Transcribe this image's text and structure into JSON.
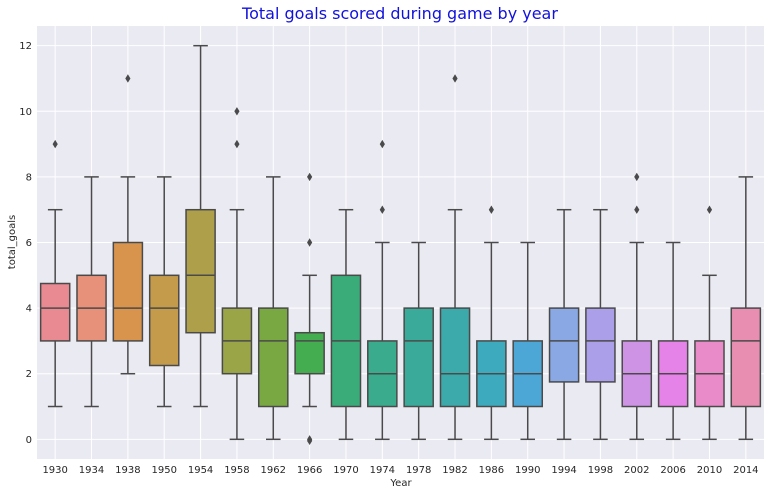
{
  "chart_data": {
    "type": "box",
    "title": "Total goals scored during game by year",
    "xlabel": "Year",
    "ylabel": "total_goals",
    "ylim": [
      -0.6,
      12.6
    ],
    "yticks": [
      0,
      2,
      4,
      6,
      8,
      10,
      12
    ],
    "grid": true,
    "categories": [
      "1930",
      "1934",
      "1938",
      "1950",
      "1954",
      "1958",
      "1962",
      "1966",
      "1970",
      "1974",
      "1978",
      "1982",
      "1986",
      "1990",
      "1994",
      "1998",
      "2002",
      "2006",
      "2010",
      "2014"
    ],
    "boxes": [
      {
        "year": "1930",
        "color": "#e98992",
        "min": 1,
        "q1": 3,
        "median": 4,
        "q3": 4.75,
        "max": 7,
        "outliers": [
          9
        ]
      },
      {
        "year": "1934",
        "color": "#e8917a",
        "min": 1,
        "q1": 3,
        "median": 4,
        "q3": 5,
        "max": 8,
        "outliers": []
      },
      {
        "year": "1938",
        "color": "#d8944c",
        "min": 2,
        "q1": 3,
        "median": 4,
        "q3": 6,
        "max": 8,
        "outliers": [
          11
        ]
      },
      {
        "year": "1950",
        "color": "#c49a4b",
        "min": 1,
        "q1": 2.25,
        "median": 4,
        "q3": 5,
        "max": 8,
        "outliers": []
      },
      {
        "year": "1954",
        "color": "#aea04a",
        "min": 1,
        "q1": 3.25,
        "median": 5,
        "q3": 7,
        "max": 12,
        "outliers": []
      },
      {
        "year": "1958",
        "color": "#99a547",
        "min": 0,
        "q1": 2,
        "median": 3,
        "q3": 4,
        "max": 7,
        "outliers": [
          9,
          10
        ]
      },
      {
        "year": "1962",
        "color": "#79a843",
        "min": 0,
        "q1": 1,
        "median": 3,
        "q3": 4,
        "max": 8,
        "outliers": []
      },
      {
        "year": "1966",
        "color": "#44ad50",
        "min": 1,
        "q1": 2,
        "median": 3,
        "q3": 3.25,
        "max": 5,
        "outliers": [
          0,
          0,
          6,
          8
        ]
      },
      {
        "year": "1970",
        "color": "#3aac79",
        "min": 0,
        "q1": 1,
        "median": 3,
        "q3": 5,
        "max": 7,
        "outliers": []
      },
      {
        "year": "1974",
        "color": "#3aab8c",
        "min": 0,
        "q1": 1,
        "median": 2,
        "q3": 3,
        "max": 6,
        "outliers": [
          7,
          9
        ]
      },
      {
        "year": "1978",
        "color": "#3aaa9b",
        "min": 0,
        "q1": 1,
        "median": 3,
        "q3": 4,
        "max": 6,
        "outliers": []
      },
      {
        "year": "1982",
        "color": "#3ca9aa",
        "min": 0,
        "q1": 1,
        "median": 2,
        "q3": 4,
        "max": 7,
        "outliers": [
          11
        ]
      },
      {
        "year": "1986",
        "color": "#3eaabd",
        "min": 0,
        "q1": 1,
        "median": 2,
        "q3": 3,
        "max": 6,
        "outliers": [
          7
        ]
      },
      {
        "year": "1990",
        "color": "#4da7d6",
        "min": 0,
        "q1": 1,
        "median": 2,
        "q3": 3,
        "max": 6,
        "outliers": []
      },
      {
        "year": "1994",
        "color": "#89a8e4",
        "min": 0,
        "q1": 1.75,
        "median": 3,
        "q3": 4,
        "max": 7,
        "outliers": []
      },
      {
        "year": "1998",
        "color": "#aa9fe8",
        "min": 0,
        "q1": 1.75,
        "median": 3,
        "q3": 4,
        "max": 7,
        "outliers": []
      },
      {
        "year": "2002",
        "color": "#cf93e6",
        "min": 0,
        "q1": 1,
        "median": 2,
        "q3": 3,
        "max": 6,
        "outliers": [
          7,
          8
        ]
      },
      {
        "year": "2006",
        "color": "#e683e8",
        "min": 0,
        "q1": 1,
        "median": 2,
        "q3": 3,
        "max": 6,
        "outliers": []
      },
      {
        "year": "2010",
        "color": "#e88bc8",
        "min": 0,
        "q1": 1,
        "median": 2,
        "q3": 3,
        "max": 5,
        "outliers": [
          7
        ]
      },
      {
        "year": "2014",
        "color": "#e88fb1",
        "min": 0,
        "q1": 1,
        "median": 3,
        "q3": 4,
        "max": 8,
        "outliers": []
      }
    ]
  },
  "colors": {
    "title": "#1111dd",
    "plot_background": "#eaeaf2",
    "grid": "#ffffff",
    "box_edge": "#4a4a4a"
  }
}
